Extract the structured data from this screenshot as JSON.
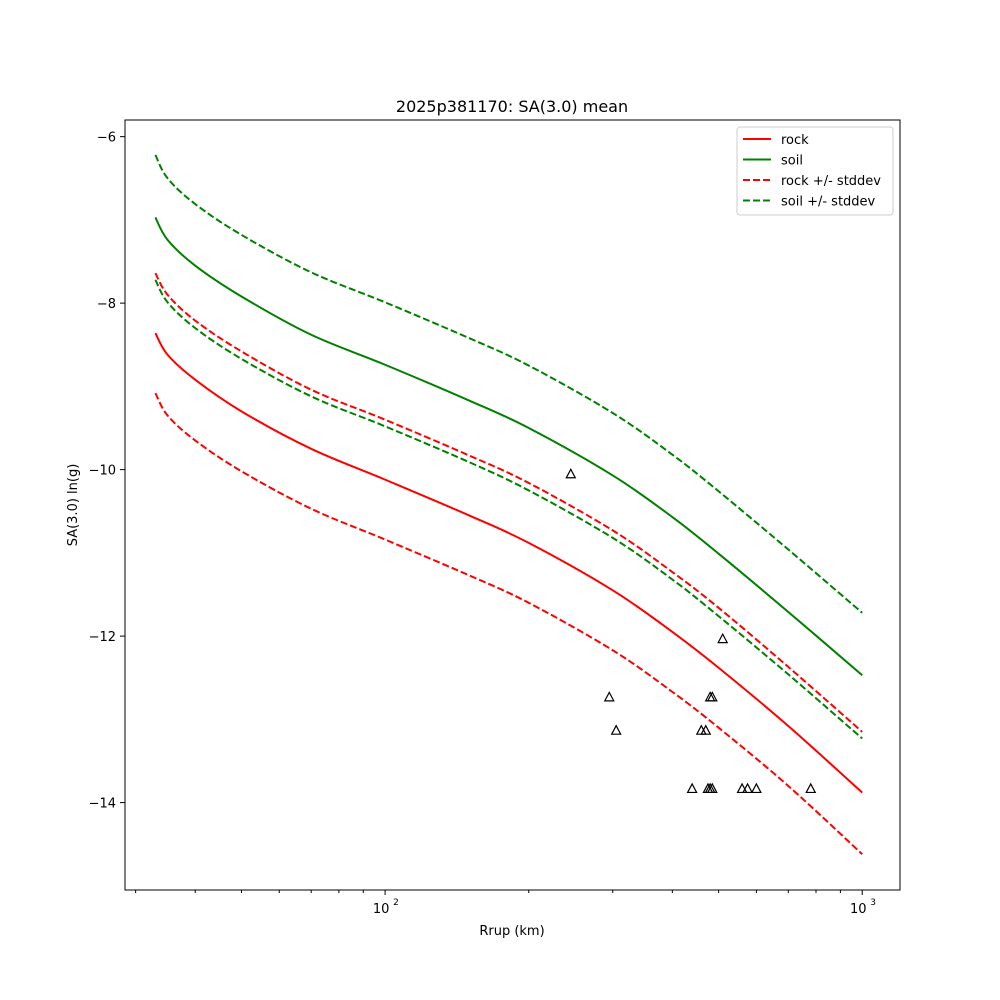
{
  "chart_data": {
    "type": "line",
    "title": "2025p381170: SA(3.0) mean",
    "xlabel": "Rrup (km)",
    "ylabel": "SA(3.0) ln(g)",
    "xscale": "log",
    "xlim": [
      28.5,
      1200
    ],
    "ylim": [
      -15.05,
      -5.8
    ],
    "x_tick_labels": [
      {
        "value": 100,
        "base": "10",
        "exp": "2"
      },
      {
        "value": 1000,
        "base": "10",
        "exp": "3"
      }
    ],
    "y_ticks": [
      -6,
      -8,
      -10,
      -12,
      -14
    ],
    "y_tick_labels": [
      "−6",
      "−8",
      "−10",
      "−12",
      "−14"
    ],
    "grid": false,
    "legend_position": "top-right",
    "series": [
      {
        "name": "rock",
        "color": "#ff0000",
        "style": "solid",
        "x": [
          33,
          35,
          40,
          50,
          70,
          100,
          150,
          200,
          300,
          400,
          500,
          700,
          1000
        ],
        "y": [
          -8.36,
          -8.62,
          -8.92,
          -9.3,
          -9.75,
          -10.12,
          -10.55,
          -10.88,
          -11.45,
          -11.95,
          -12.38,
          -13.08,
          -13.88
        ]
      },
      {
        "name": "soil",
        "color": "#008000",
        "style": "solid",
        "x": [
          33,
          35,
          40,
          50,
          70,
          100,
          150,
          200,
          300,
          400,
          500,
          700,
          1000
        ],
        "y": [
          -6.97,
          -7.24,
          -7.55,
          -7.92,
          -8.38,
          -8.74,
          -9.17,
          -9.5,
          -10.07,
          -10.57,
          -11.01,
          -11.71,
          -12.47
        ]
      },
      {
        "name": "rock +/- stddev",
        "color": "#ff0000",
        "style": "dashed",
        "x": [
          33,
          35,
          40,
          50,
          70,
          100,
          150,
          200,
          300,
          400,
          500,
          700,
          1000
        ],
        "y": [
          -7.64,
          -7.9,
          -8.21,
          -8.58,
          -9.04,
          -9.4,
          -9.83,
          -10.16,
          -10.73,
          -11.23,
          -11.66,
          -12.37,
          -13.15
        ]
      },
      {
        "name": "rock +/- stddev (lower)",
        "color": "#ff0000",
        "style": "dashed",
        "x": [
          33,
          35,
          40,
          50,
          70,
          100,
          150,
          200,
          300,
          400,
          500,
          700,
          1000
        ],
        "y": [
          -9.08,
          -9.35,
          -9.65,
          -10.02,
          -10.47,
          -10.84,
          -11.27,
          -11.6,
          -12.17,
          -12.67,
          -13.1,
          -13.8,
          -14.62
        ]
      },
      {
        "name": "soil +/- stddev",
        "color": "#008000",
        "style": "dashed",
        "x": [
          33,
          35,
          40,
          50,
          70,
          100,
          150,
          200,
          300,
          400,
          500,
          700,
          1000
        ],
        "y": [
          -6.22,
          -6.5,
          -6.81,
          -7.18,
          -7.63,
          -7.99,
          -8.42,
          -8.75,
          -9.32,
          -9.82,
          -10.26,
          -10.96,
          -11.72
        ]
      },
      {
        "name": "soil +/- stddev (lower)",
        "color": "#008000",
        "style": "dashed",
        "x": [
          33,
          35,
          40,
          50,
          70,
          100,
          150,
          200,
          300,
          400,
          500,
          700,
          1000
        ],
        "y": [
          -7.72,
          -7.99,
          -8.3,
          -8.67,
          -9.12,
          -9.48,
          -9.91,
          -10.25,
          -10.82,
          -11.32,
          -11.76,
          -12.46,
          -13.23
        ]
      }
    ],
    "legend": [
      {
        "label": "rock",
        "color": "#ff0000",
        "style": "solid"
      },
      {
        "label": "soil",
        "color": "#008000",
        "style": "solid"
      },
      {
        "label": "rock +/- stddev",
        "color": "#ff0000",
        "style": "dashed"
      },
      {
        "label": "soil +/- stddev",
        "color": "#008000",
        "style": "dashed"
      }
    ],
    "observations": {
      "marker": "triangle",
      "x": [
        245,
        295,
        305,
        460,
        480,
        485,
        510,
        470,
        475,
        440,
        480,
        485,
        560,
        575,
        600,
        780
      ],
      "y": [
        -10.05,
        -12.73,
        -13.13,
        -13.13,
        -12.73,
        -12.73,
        -12.03,
        -13.13,
        -13.83,
        -13.83,
        -13.83,
        -13.83,
        -13.83,
        -13.83,
        -13.83,
        -13.83
      ]
    }
  }
}
